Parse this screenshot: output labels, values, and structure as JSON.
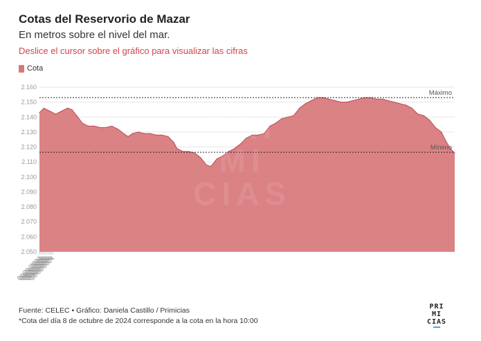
{
  "header": {
    "title": "Cotas del Reservorio de Mazar",
    "subtitle": "En metros sobre el nivel del mar.",
    "hint": "Deslice el cursor sobre el gráfico para visualizar las cifras"
  },
  "legend": {
    "label": "Cota"
  },
  "footer": {
    "source": "Fuente: CELEC • Gráfico: Daniela Castillo / Primicias",
    "note": "*Cota del día 8 de octubre de 2024 corresponde a la cota en la hora 10:00"
  },
  "brand": {
    "line1": "PRI",
    "line2": "MI",
    "line3": "CIAS"
  },
  "watermark": {
    "line1": "PRI",
    "line2": "MI",
    "line3": "CIAS"
  },
  "colors": {
    "area": "#d8777b",
    "line": "#b94a50",
    "accent": "#d2434b",
    "brand_bar": "#4aa3df"
  },
  "chart_data": {
    "type": "area",
    "series": [
      {
        "name": "Cota"
      }
    ],
    "ylim": [
      2.05,
      2.16
    ],
    "yticks": [
      "2.050",
      "2.060",
      "2.070",
      "2.080",
      "2.090",
      "2.100",
      "2.110",
      "2.120",
      "2.130",
      "2.140",
      "2.150",
      "2.160"
    ],
    "xticks": [
      "01/01/2024",
      "02/01/2024",
      "03/01/2024",
      "04/01/2024",
      "05/01/2024",
      "06/01/2024",
      "07/01/2024",
      "08/01/2024",
      "09/01/2024",
      "10/01/2024"
    ],
    "xrange": [
      "2024-01-01",
      "2024-10-08"
    ],
    "reference_lines": [
      {
        "label": "Máximo",
        "value": 2.153
      },
      {
        "label": "Mínimo",
        "value": 2.1165
      }
    ],
    "points": [
      [
        "2024-01-01",
        2.143
      ],
      [
        "2024-01-04",
        2.146
      ],
      [
        "2024-01-08",
        2.144
      ],
      [
        "2024-01-12",
        2.142
      ],
      [
        "2024-01-16",
        2.144
      ],
      [
        "2024-01-20",
        2.146
      ],
      [
        "2024-01-23",
        2.145
      ],
      [
        "2024-01-27",
        2.14
      ],
      [
        "2024-01-30",
        2.136
      ],
      [
        "2024-02-03",
        2.134
      ],
      [
        "2024-02-07",
        2.134
      ],
      [
        "2024-02-11",
        2.133
      ],
      [
        "2024-02-15",
        2.133
      ],
      [
        "2024-02-19",
        2.134
      ],
      [
        "2024-02-23",
        2.132
      ],
      [
        "2024-02-27",
        2.129
      ],
      [
        "2024-03-01",
        2.127
      ],
      [
        "2024-03-04",
        2.129
      ],
      [
        "2024-03-08",
        2.13
      ],
      [
        "2024-03-12",
        2.129
      ],
      [
        "2024-03-16",
        2.129
      ],
      [
        "2024-03-20",
        2.128
      ],
      [
        "2024-03-24",
        2.128
      ],
      [
        "2024-03-28",
        2.127
      ],
      [
        "2024-04-01",
        2.123
      ],
      [
        "2024-04-03",
        2.119
      ],
      [
        "2024-04-07",
        2.117
      ],
      [
        "2024-04-11",
        2.117
      ],
      [
        "2024-04-15",
        2.116
      ],
      [
        "2024-04-19",
        2.113
      ],
      [
        "2024-04-23",
        2.108
      ],
      [
        "2024-04-26",
        2.107
      ],
      [
        "2024-04-30",
        2.112
      ],
      [
        "2024-05-04",
        2.114
      ],
      [
        "2024-05-08",
        2.117
      ],
      [
        "2024-05-12",
        2.119
      ],
      [
        "2024-05-16",
        2.122
      ],
      [
        "2024-05-20",
        2.126
      ],
      [
        "2024-05-24",
        2.128
      ],
      [
        "2024-05-28",
        2.128
      ],
      [
        "2024-06-01",
        2.129
      ],
      [
        "2024-06-05",
        2.134
      ],
      [
        "2024-06-09",
        2.136
      ],
      [
        "2024-06-13",
        2.139
      ],
      [
        "2024-06-17",
        2.14
      ],
      [
        "2024-06-21",
        2.141
      ],
      [
        "2024-06-25",
        2.146
      ],
      [
        "2024-06-29",
        2.149
      ],
      [
        "2024-07-03",
        2.151
      ],
      [
        "2024-07-07",
        2.153
      ],
      [
        "2024-07-11",
        2.153
      ],
      [
        "2024-07-15",
        2.152
      ],
      [
        "2024-07-19",
        2.151
      ],
      [
        "2024-07-23",
        2.15
      ],
      [
        "2024-07-27",
        2.15
      ],
      [
        "2024-07-31",
        2.151
      ],
      [
        "2024-08-04",
        2.152
      ],
      [
        "2024-08-08",
        2.153
      ],
      [
        "2024-08-12",
        2.153
      ],
      [
        "2024-08-16",
        2.152
      ],
      [
        "2024-08-20",
        2.152
      ],
      [
        "2024-08-24",
        2.151
      ],
      [
        "2024-08-28",
        2.15
      ],
      [
        "2024-09-01",
        2.149
      ],
      [
        "2024-09-05",
        2.148
      ],
      [
        "2024-09-09",
        2.146
      ],
      [
        "2024-09-13",
        2.142
      ],
      [
        "2024-09-17",
        2.141
      ],
      [
        "2024-09-21",
        2.138
      ],
      [
        "2024-09-25",
        2.133
      ],
      [
        "2024-09-29",
        2.13
      ],
      [
        "2024-10-02",
        2.124
      ],
      [
        "2024-10-05",
        2.119
      ],
      [
        "2024-10-08",
        2.116
      ]
    ]
  }
}
